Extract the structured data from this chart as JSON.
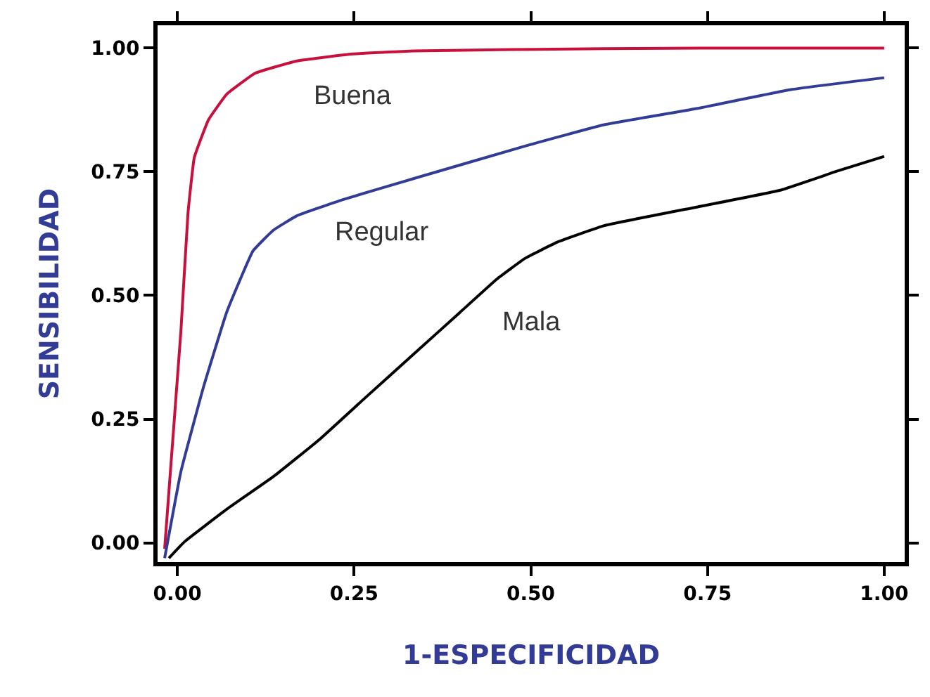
{
  "chart_data": {
    "type": "line",
    "xlabel": "1-ESPECIFICIDAD",
    "ylabel": "SENSIBILIDAD",
    "xlim": [
      -0.028,
      1.029
    ],
    "ylim": [
      -0.039,
      1.046
    ],
    "xticks": [
      {
        "value": 0,
        "label": "0.00"
      },
      {
        "value": 0.25,
        "label": "0.25"
      },
      {
        "value": 0.5,
        "label": "0.50"
      },
      {
        "value": 0.75,
        "label": "0.75"
      },
      {
        "value": 1,
        "label": "1.00"
      }
    ],
    "yticks": [
      {
        "value": 0,
        "label": "0.00"
      },
      {
        "value": 0.25,
        "label": "0.25"
      },
      {
        "value": 0.5,
        "label": "0.50"
      },
      {
        "value": 0.75,
        "label": "0.75"
      },
      {
        "value": 1,
        "label": "1.00"
      }
    ],
    "grid": false,
    "legend": false,
    "marker": "none",
    "line_style": "solid",
    "series": [
      {
        "name": "Buena",
        "color": "#c8103e",
        "x": [
          -0.018,
          0.005,
          0.015,
          0.024,
          0.044,
          0.07,
          0.11,
          0.169,
          0.248,
          0.334,
          0.472,
          0.736,
          1.0
        ],
        "values": [
          -0.012,
          0.428,
          0.666,
          0.779,
          0.855,
          0.907,
          0.949,
          0.974,
          0.988,
          0.994,
          0.997,
          1.0,
          1.0
        ]
      },
      {
        "name": "Regular",
        "color": "#323c96",
        "x": [
          -0.018,
          0.005,
          0.037,
          0.07,
          0.107,
          0.136,
          0.169,
          0.235,
          0.334,
          0.492,
          0.604,
          0.736,
          0.868,
          1.0
        ],
        "values": [
          -0.031,
          0.144,
          0.315,
          0.467,
          0.59,
          0.632,
          0.661,
          0.694,
          0.736,
          0.802,
          0.845,
          0.878,
          0.916,
          0.94
        ]
      },
      {
        "name": "Mala",
        "color": "#000000",
        "x": [
          -0.012,
          0.01,
          0.07,
          0.136,
          0.202,
          0.268,
          0.334,
          0.4,
          0.452,
          0.492,
          0.538,
          0.604,
          0.736,
          0.854,
          0.933,
          1.0
        ],
        "values": [
          -0.031,
          0.002,
          0.068,
          0.134,
          0.21,
          0.296,
          0.381,
          0.466,
          0.533,
          0.575,
          0.608,
          0.641,
          0.679,
          0.713,
          0.751,
          0.781
        ]
      }
    ]
  }
}
